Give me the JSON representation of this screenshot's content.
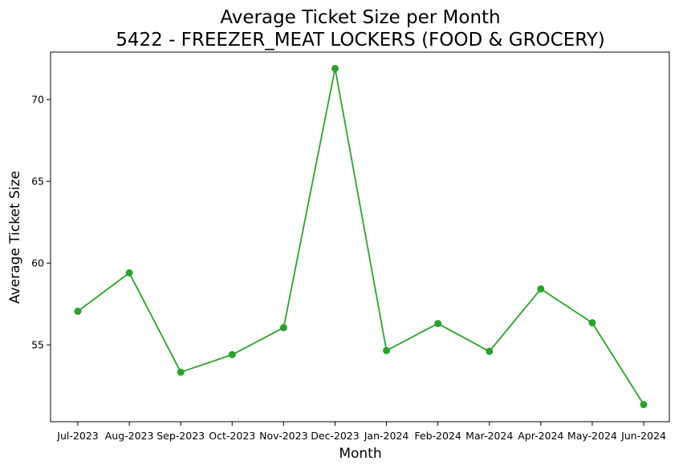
{
  "chart_data": {
    "type": "line",
    "title": "Average Ticket Size per Month",
    "subtitle": "5422 - FREEZER_MEAT LOCKERS (FOOD & GROCERY)",
    "xlabel": "Month",
    "ylabel": "Average Ticket Size",
    "categories": [
      "Jul-2023",
      "Aug-2023",
      "Sep-2023",
      "Oct-2023",
      "Nov-2023",
      "Dec-2023",
      "Jan-2024",
      "Feb-2024",
      "Mar-2024",
      "Apr-2024",
      "May-2024",
      "Jun-2024"
    ],
    "series": [
      {
        "color": "#2ca02c",
        "marker": "circle",
        "values": [
          57.05,
          59.4,
          53.33,
          54.4,
          56.05,
          71.9,
          54.65,
          56.3,
          54.6,
          58.42,
          56.35,
          51.35
        ]
      }
    ],
    "yticks": [
      55,
      60,
      65,
      70
    ],
    "ylim": [
      50.3,
      72.9
    ],
    "grid": false,
    "legend": "none"
  }
}
